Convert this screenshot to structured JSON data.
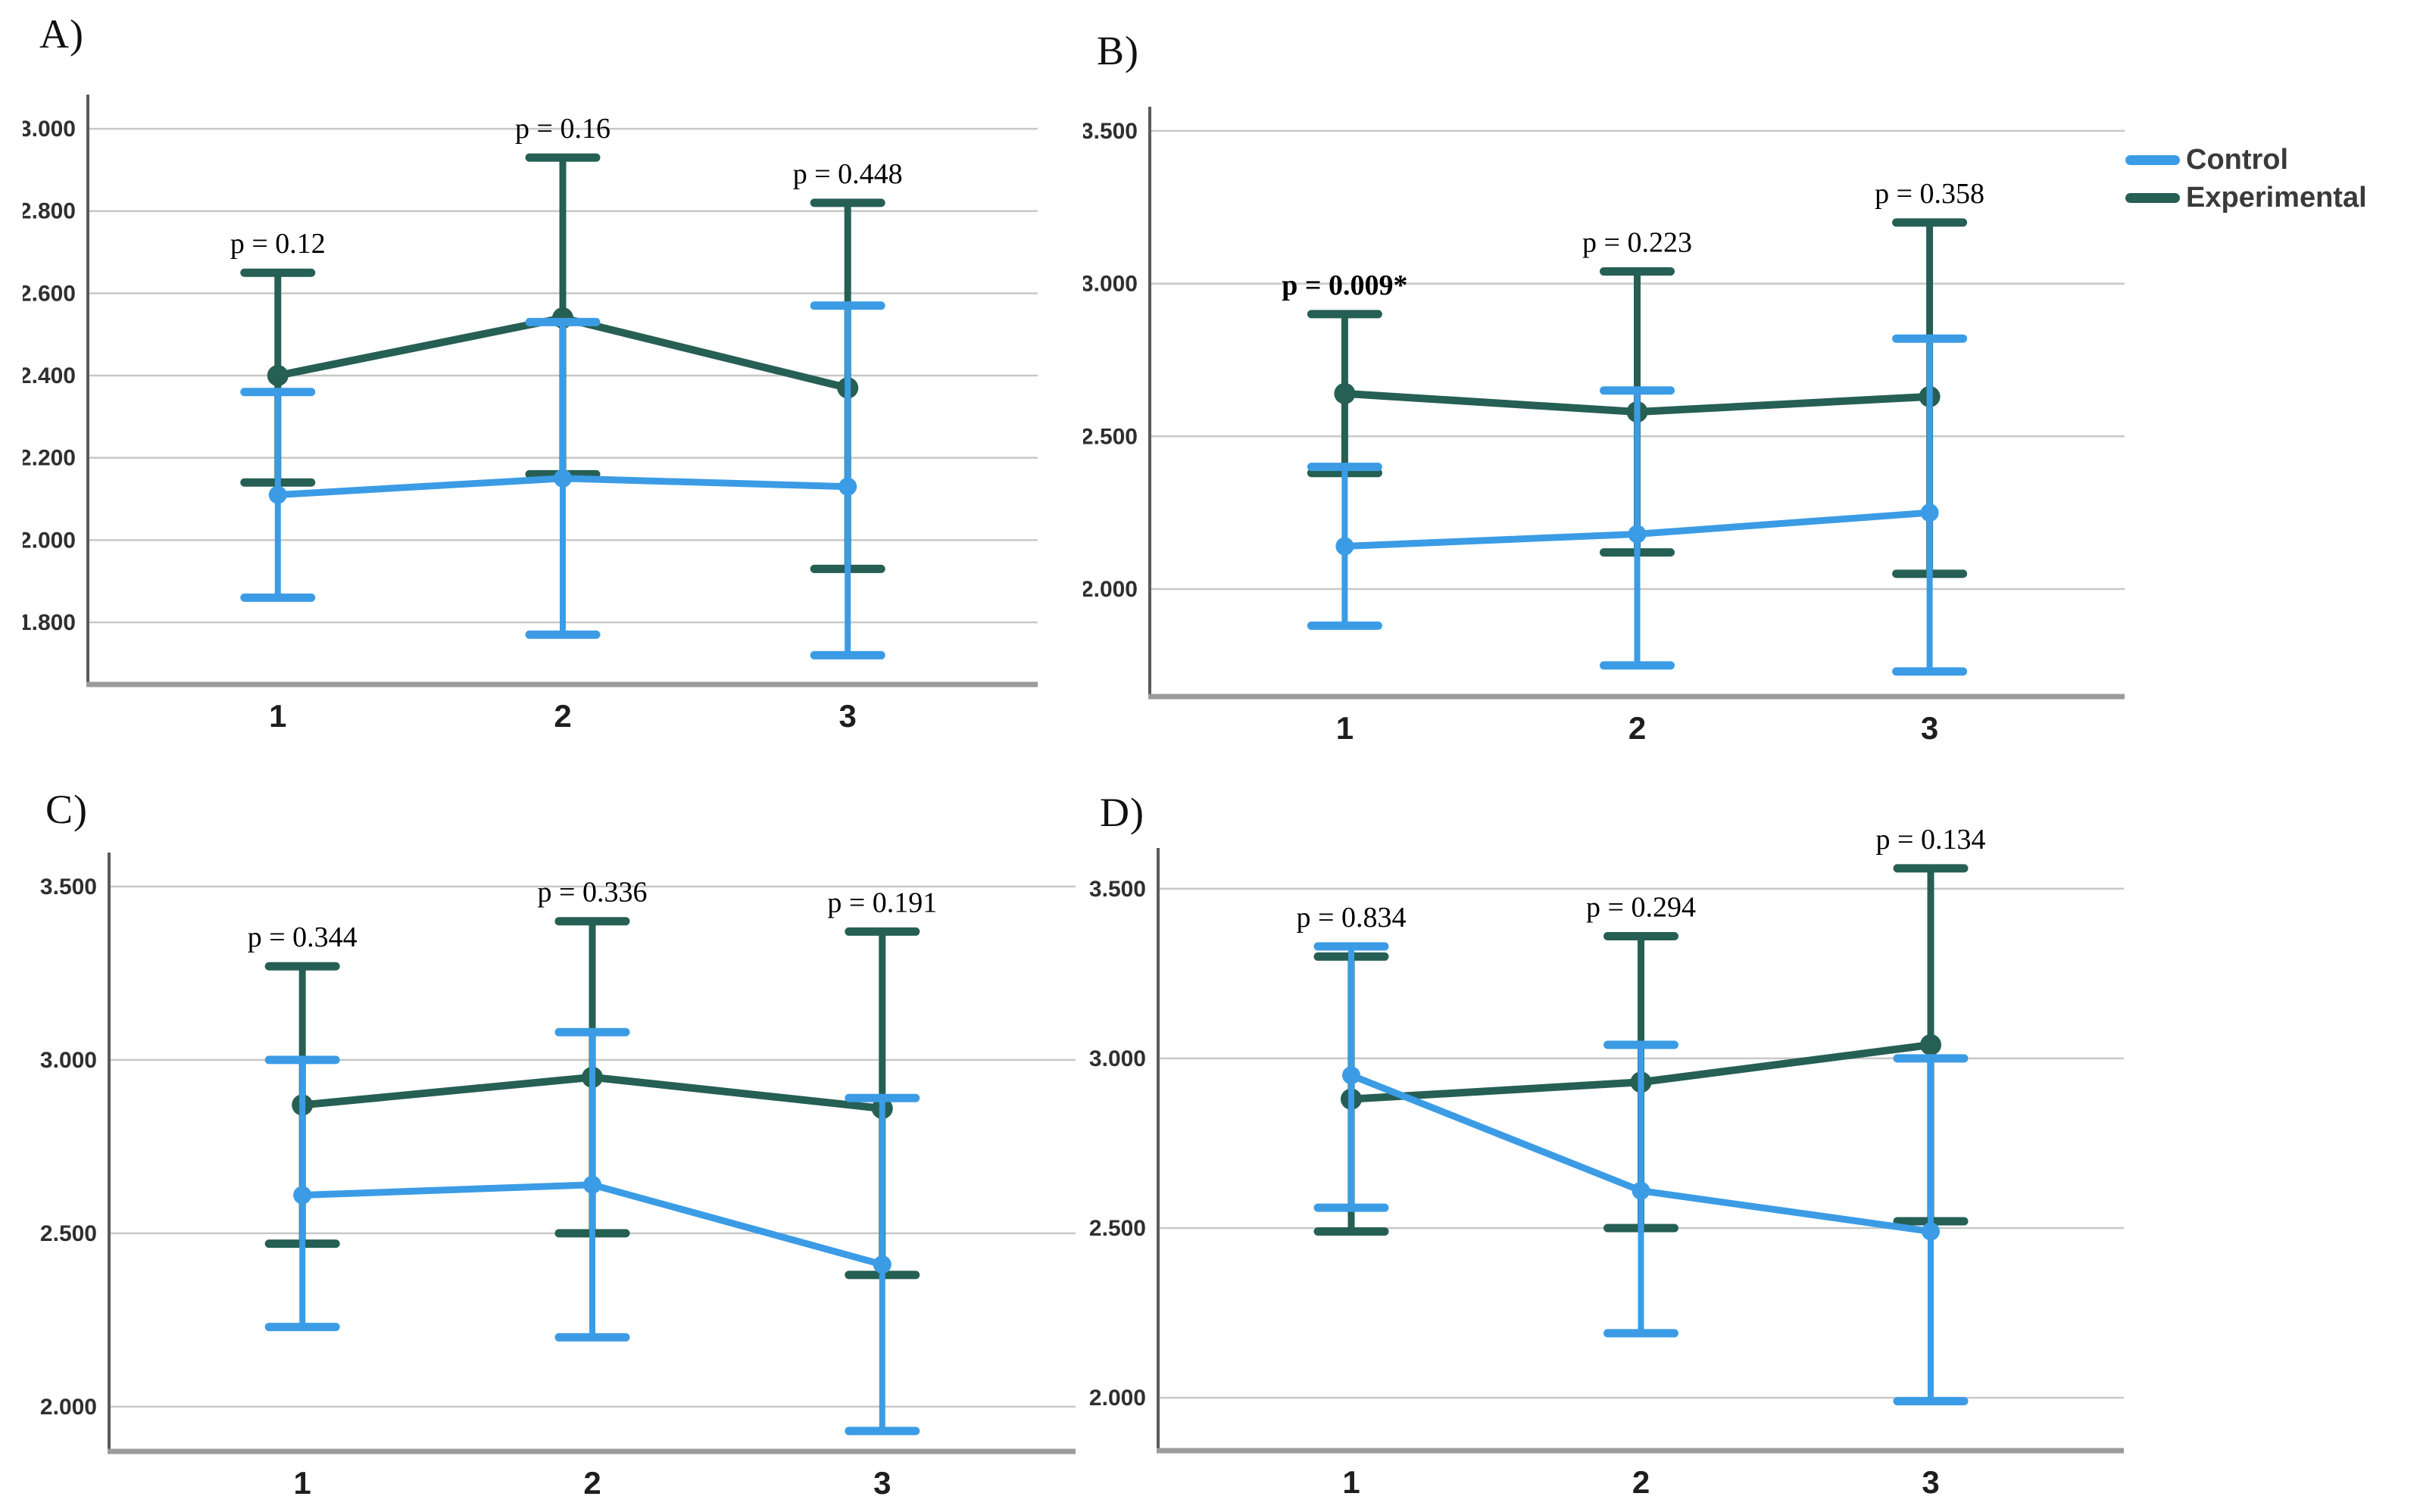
{
  "page": {
    "background": "#ffffff"
  },
  "legend": {
    "position": "right-of-panel-B",
    "items": [
      {
        "label": "Control",
        "color": "#3B9CE5"
      },
      {
        "label": "Experimental",
        "color": "#265F54"
      }
    ]
  },
  "chart_data": [
    {
      "type": "line",
      "panel_label": "A)",
      "title": "",
      "xlabel": "",
      "ylabel": "",
      "categories": [
        "1",
        "2",
        "3"
      ],
      "ylim": [
        1.649,
        3.083
      ],
      "grid": true,
      "yticks": [
        {
          "v": 3.0,
          "label": "3.000"
        },
        {
          "v": 2.8,
          "label": "2.800"
        },
        {
          "v": 2.6,
          "label": "2.600"
        },
        {
          "v": 2.4,
          "label": "2.400"
        },
        {
          "v": 2.2,
          "label": "2.200"
        },
        {
          "v": 2.0,
          "label": "2.000"
        },
        {
          "v": 1.8,
          "label": "1.800"
        }
      ],
      "series": [
        {
          "name": "Control",
          "color": "#3B9CE5",
          "values": [
            2.11,
            2.15,
            2.13
          ],
          "err_high": [
            2.36,
            2.53,
            2.57
          ],
          "err_low": [
            1.86,
            1.77,
            1.72
          ]
        },
        {
          "name": "Experimental",
          "color": "#265F54",
          "values": [
            2.4,
            2.54,
            2.37
          ],
          "err_high": [
            2.65,
            2.93,
            2.82
          ],
          "err_low": [
            2.14,
            2.16,
            1.93
          ]
        }
      ],
      "p_labels": [
        {
          "text": "p = 0.12",
          "bold": false
        },
        {
          "text": "p = 0.16",
          "bold": false
        },
        {
          "text": "p = 0.448",
          "bold": false
        }
      ]
    },
    {
      "type": "line",
      "panel_label": "B)",
      "title": "",
      "xlabel": "",
      "ylabel": "",
      "categories": [
        "1",
        "2",
        "3"
      ],
      "ylim": [
        1.648,
        3.579
      ],
      "grid": true,
      "yticks": [
        {
          "v": 3.5,
          "label": "3.500"
        },
        {
          "v": 3.0,
          "label": "3.000"
        },
        {
          "v": 2.5,
          "label": "2.500"
        },
        {
          "v": 2.0,
          "label": "2.000"
        }
      ],
      "series": [
        {
          "name": "Control",
          "color": "#3B9CE5",
          "values": [
            2.14,
            2.18,
            2.25
          ],
          "err_high": [
            2.4,
            2.65,
            2.82
          ],
          "err_low": [
            1.88,
            1.75,
            1.73
          ]
        },
        {
          "name": "Experimental",
          "color": "#265F54",
          "values": [
            2.64,
            2.58,
            2.63
          ],
          "err_high": [
            2.9,
            3.04,
            3.2
          ],
          "err_low": [
            2.38,
            2.12,
            2.05
          ]
        }
      ],
      "p_labels": [
        {
          "text": "p = 0.009*",
          "bold": true
        },
        {
          "text": "p = 0.223",
          "bold": false
        },
        {
          "text": "p = 0.358",
          "bold": false
        }
      ]
    },
    {
      "type": "line",
      "panel_label": "C)",
      "title": "",
      "xlabel": "",
      "ylabel": "",
      "categories": [
        "1",
        "2",
        "3"
      ],
      "ylim": [
        1.871,
        3.598
      ],
      "grid": true,
      "yticks": [
        {
          "v": 3.5,
          "label": "3.500"
        },
        {
          "v": 3.0,
          "label": "3.000"
        },
        {
          "v": 2.5,
          "label": "2.500"
        },
        {
          "v": 2.0,
          "label": "2.000"
        }
      ],
      "series": [
        {
          "name": "Control",
          "color": "#3B9CE5",
          "values": [
            2.61,
            2.64,
            2.41
          ],
          "err_high": [
            3.0,
            3.08,
            2.89
          ],
          "err_low": [
            2.23,
            2.2,
            1.93
          ]
        },
        {
          "name": "Experimental",
          "color": "#265F54",
          "values": [
            2.87,
            2.95,
            2.86
          ],
          "err_high": [
            3.27,
            3.4,
            3.37
          ],
          "err_low": [
            2.47,
            2.5,
            2.38
          ]
        }
      ],
      "p_labels": [
        {
          "text": "p = 0.344",
          "bold": false
        },
        {
          "text": "p = 0.336",
          "bold": false
        },
        {
          "text": "p = 0.191",
          "bold": false
        }
      ]
    },
    {
      "type": "line",
      "panel_label": "D)",
      "title": "",
      "xlabel": "",
      "ylabel": "",
      "categories": [
        "1",
        "2",
        "3"
      ],
      "ylim": [
        1.844,
        3.62
      ],
      "grid": true,
      "yticks": [
        {
          "v": 3.5,
          "label": "3.500"
        },
        {
          "v": 3.0,
          "label": "3.000"
        },
        {
          "v": 2.5,
          "label": "2.500"
        },
        {
          "v": 2.0,
          "label": "2.000"
        }
      ],
      "series": [
        {
          "name": "Control",
          "color": "#3B9CE5",
          "values": [
            2.95,
            2.61,
            2.49
          ],
          "err_high": [
            3.33,
            3.04,
            3.0
          ],
          "err_low": [
            2.56,
            2.19,
            1.99
          ]
        },
        {
          "name": "Experimental",
          "color": "#265F54",
          "values": [
            2.88,
            2.93,
            3.04
          ],
          "err_high": [
            3.3,
            3.36,
            3.56
          ],
          "err_low": [
            2.49,
            2.5,
            2.52
          ]
        }
      ],
      "p_labels": [
        {
          "text": "p = 0.834",
          "bold": false
        },
        {
          "text": "p = 0.294",
          "bold": false
        },
        {
          "text": "p = 0.134",
          "bold": false
        }
      ]
    }
  ]
}
